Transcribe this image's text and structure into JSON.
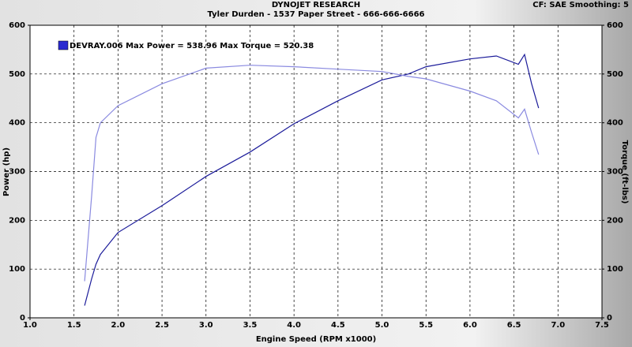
{
  "chart_data": {
    "type": "line",
    "title": "DYNOJET RESEARCH",
    "subtitle": "Tyler Durden - 1537 Paper Street - 666-666-6666",
    "annotation": "CF: SAE  Smoothing: 5",
    "legend_text": "DEVRAY.006 Max Power = 538.96 Max Torque = 520.38",
    "x_label": "Engine Speed (RPM x1000)",
    "y_label": "Power (hp)",
    "y2_label": "Torque (ft-lbs)",
    "x": [
      1.62,
      1.7,
      1.75,
      1.8,
      2.0,
      2.5,
      3.0,
      3.5,
      4.0,
      4.5,
      5.0,
      5.3,
      5.5,
      6.0,
      6.3,
      6.55,
      6.62,
      6.7,
      6.78
    ],
    "series": [
      {
        "name": "Power",
        "color": "#1c1c9a",
        "values": [
          25,
          80,
          110,
          130,
          175,
          230,
          290,
          340,
          398,
          445,
          488,
          500,
          515,
          531,
          537,
          520,
          540,
          480,
          430
        ]
      },
      {
        "name": "Torque",
        "color": "#8a8ae0",
        "axis": "y2",
        "values": [
          75,
          250,
          370,
          400,
          435,
          480,
          512,
          518,
          515,
          510,
          505,
          495,
          490,
          465,
          445,
          410,
          428,
          380,
          335
        ]
      }
    ],
    "xlim": [
      1.0,
      7.5
    ],
    "xticks": [
      {
        "value": 1,
        "label": "1.0"
      },
      1.5,
      {
        "value": 2,
        "label": "2.0"
      },
      2.5,
      {
        "value": 3,
        "label": "3.0"
      },
      3.5,
      {
        "value": 4,
        "label": "4.0"
      },
      4.5,
      {
        "value": 5,
        "label": "5.0"
      },
      5.5,
      {
        "value": 6,
        "label": "6.0"
      },
      6.5,
      {
        "value": 7,
        "label": "7.0"
      },
      7.5
    ],
    "ylim": [
      0,
      600
    ],
    "yticks": [
      0,
      100,
      200,
      300,
      400,
      500,
      600
    ],
    "y2lim": [
      0,
      600
    ],
    "y2ticks": [
      0,
      100,
      200,
      300,
      400,
      500,
      600
    ],
    "grid": true
  }
}
